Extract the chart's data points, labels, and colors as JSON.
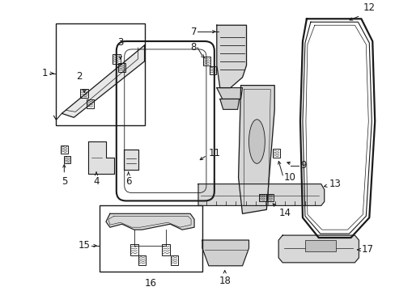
{
  "bg_color": "#ffffff",
  "line_color": "#1a1a1a",
  "font_size": 8.5
}
